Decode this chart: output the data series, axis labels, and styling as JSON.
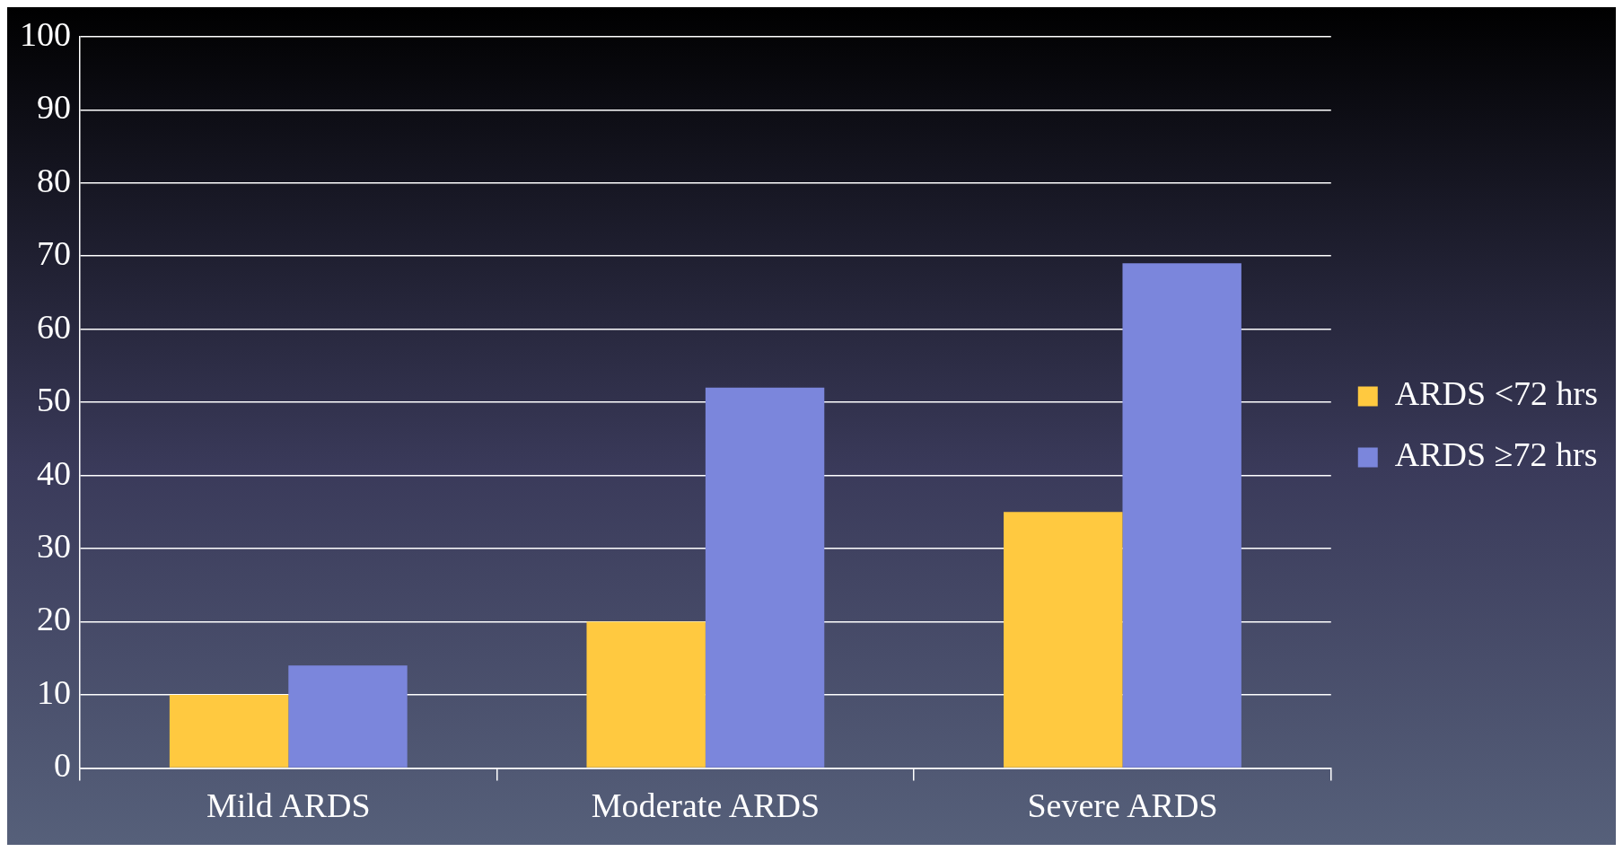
{
  "chart_data": {
    "type": "bar",
    "categories": [
      "Mild ARDS",
      "Moderate ARDS",
      "Severe ARDS"
    ],
    "series": [
      {
        "name": "ARDS <72 hrs",
        "color": "#ffc940",
        "values": [
          10,
          20,
          35
        ]
      },
      {
        "name": "ARDS ≥72 hrs",
        "color": "#7b86dc",
        "values": [
          14,
          52,
          69
        ]
      }
    ],
    "ylim": [
      0,
      100
    ],
    "yticks": [
      0,
      10,
      20,
      30,
      40,
      50,
      60,
      70,
      80,
      90,
      100
    ],
    "grid": "y",
    "legend": "right"
  }
}
